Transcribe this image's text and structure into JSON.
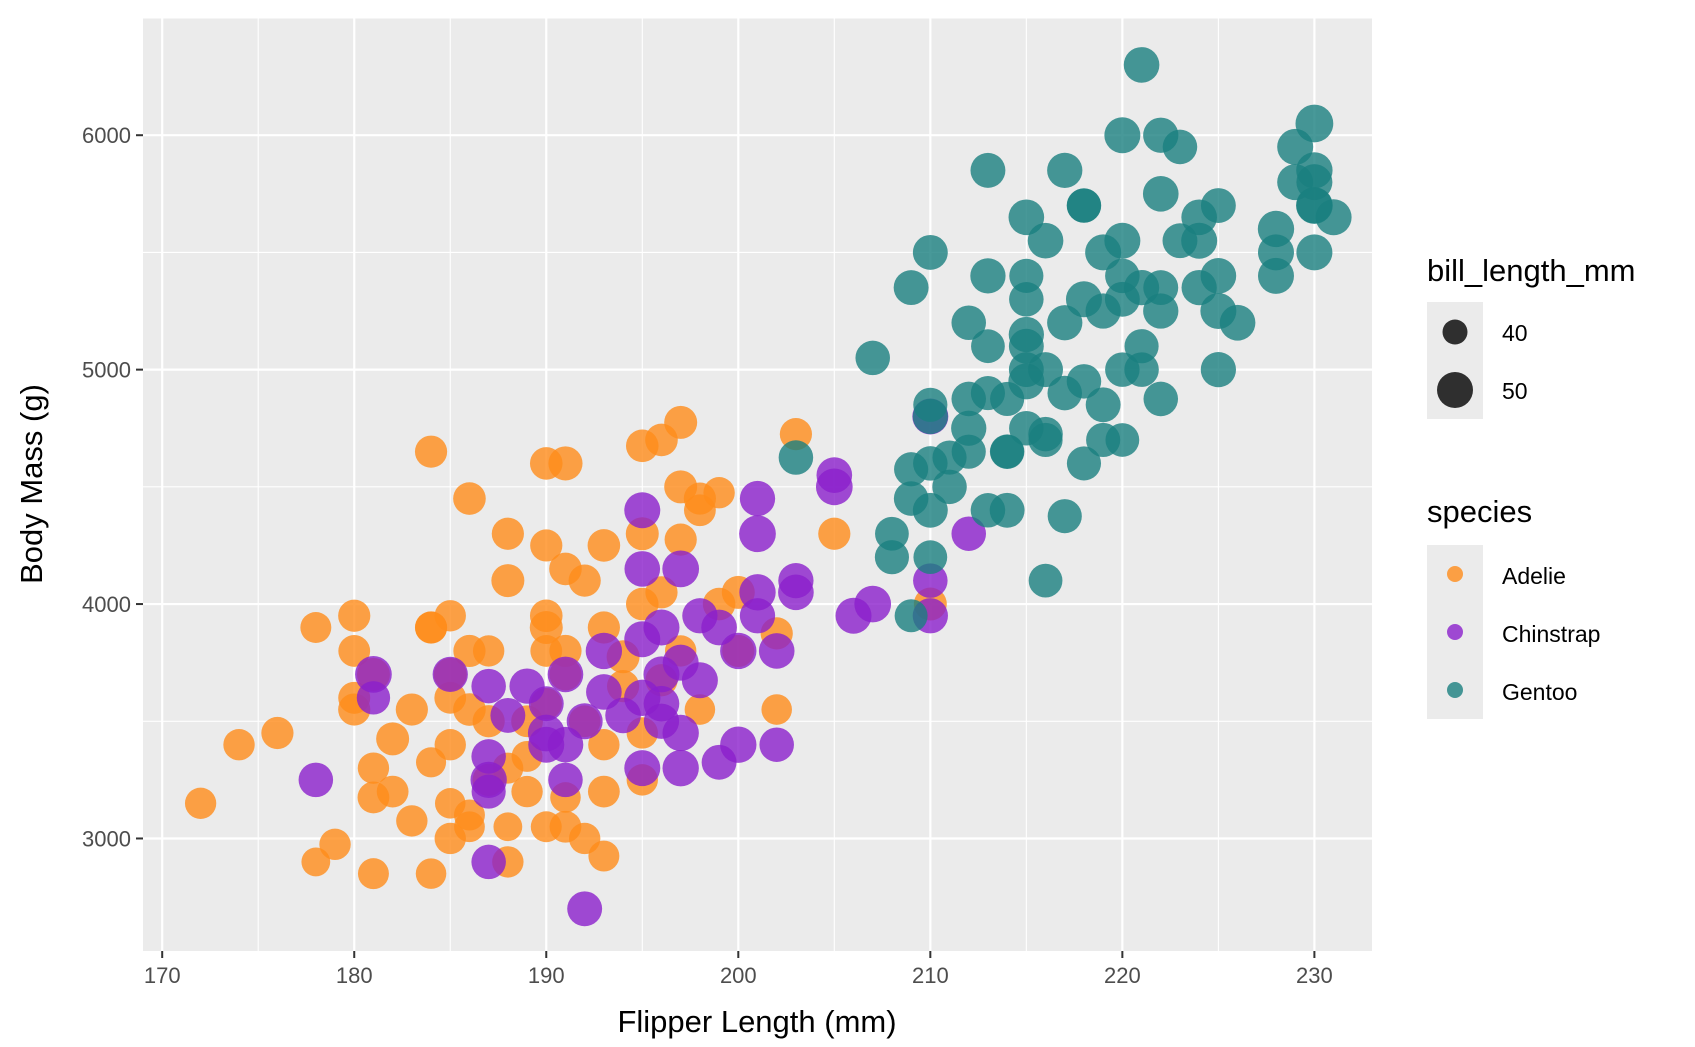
{
  "chart_data": {
    "type": "scatter",
    "title": "",
    "xlabel": "Flipper Length (mm)",
    "ylabel": "Body Mass (g)",
    "xlim": [
      169,
      233
    ],
    "ylim": [
      2520,
      6500
    ],
    "x_ticks": [
      170,
      180,
      190,
      200,
      210,
      220,
      230
    ],
    "y_ticks": [
      3000,
      4000,
      5000,
      6000
    ],
    "grid": true,
    "legend_position": "right",
    "size_legend": {
      "title": "bill_length_mm",
      "entries": [
        {
          "label": "40",
          "value": 40
        },
        {
          "label": "50",
          "value": 50
        }
      ]
    },
    "color_legend": {
      "title": "species",
      "entries": [
        {
          "label": "Adelie",
          "color": "#FF8C1A"
        },
        {
          "label": "Chinstrap",
          "color": "#8B1FCC"
        },
        {
          "label": "Gentoo",
          "color": "#1A8080"
        }
      ]
    },
    "series": [
      {
        "name": "Adelie",
        "color": "#FF8C1A",
        "points": [
          [
            172,
            3150,
            37.8
          ],
          [
            174,
            3400,
            38
          ],
          [
            176,
            3450,
            40
          ],
          [
            178,
            2900,
            32
          ],
          [
            178,
            3900,
            37
          ],
          [
            179,
            2975,
            38
          ],
          [
            180,
            3950,
            40
          ],
          [
            180,
            3800,
            39
          ],
          [
            180,
            3600,
            39.5
          ],
          [
            180,
            3550,
            40
          ],
          [
            181,
            3300,
            38
          ],
          [
            181,
            3175,
            39
          ],
          [
            181,
            2850,
            37
          ],
          [
            181,
            3700,
            42
          ],
          [
            182,
            3425,
            42
          ],
          [
            182,
            3200,
            39
          ],
          [
            183,
            3075,
            38
          ],
          [
            183,
            3550,
            40
          ],
          [
            184,
            3900,
            40
          ],
          [
            184,
            3900,
            39.5
          ],
          [
            184,
            3325,
            35
          ],
          [
            184,
            2850,
            36
          ],
          [
            184,
            4650,
            40
          ],
          [
            185,
            3950,
            38
          ],
          [
            185,
            3700,
            42
          ],
          [
            185,
            3600,
            39
          ],
          [
            185,
            3400,
            38
          ],
          [
            185,
            3150,
            36
          ],
          [
            185,
            3000,
            38
          ],
          [
            186,
            3550,
            41
          ],
          [
            186,
            3100,
            37
          ],
          [
            186,
            3800,
            40
          ],
          [
            186,
            4450,
            41
          ],
          [
            186,
            3050,
            36.5
          ],
          [
            187,
            3800,
            38
          ],
          [
            187,
            3250,
            40
          ],
          [
            187,
            3500,
            40
          ],
          [
            188,
            3300,
            37
          ],
          [
            188,
            4300,
            40
          ],
          [
            188,
            4100,
            42
          ],
          [
            188,
            2900,
            38
          ],
          [
            188,
            3050,
            32
          ],
          [
            189,
            3350,
            37
          ],
          [
            189,
            3200,
            38
          ],
          [
            189,
            3500,
            39
          ],
          [
            190,
            4250,
            40
          ],
          [
            190,
            3900,
            42
          ],
          [
            190,
            3950,
            41
          ],
          [
            190,
            4600,
            41
          ],
          [
            190,
            3050,
            37
          ],
          [
            190,
            3800,
            39
          ],
          [
            190,
            3575,
            38
          ],
          [
            191,
            3800,
            40
          ],
          [
            191,
            4150,
            41
          ],
          [
            191,
            3700,
            40
          ],
          [
            191,
            3050,
            39
          ],
          [
            191,
            3175,
            36
          ],
          [
            191,
            4600,
            45
          ],
          [
            192,
            4100,
            40
          ],
          [
            192,
            3500,
            39
          ],
          [
            192,
            3000,
            38
          ],
          [
            193,
            3400,
            38
          ],
          [
            193,
            3200,
            39
          ],
          [
            193,
            3900,
            40
          ],
          [
            193,
            2925,
            37
          ],
          [
            193,
            4250,
            41
          ],
          [
            194,
            3775,
            42
          ],
          [
            194,
            3650,
            40
          ],
          [
            195,
            4000,
            41
          ],
          [
            195,
            4675,
            41
          ],
          [
            195,
            3450,
            38
          ],
          [
            195,
            3250,
            38
          ],
          [
            195,
            4300,
            42
          ],
          [
            196,
            4050,
            40
          ],
          [
            196,
            4700,
            41
          ],
          [
            196,
            3675,
            40
          ],
          [
            197,
            4500,
            42
          ],
          [
            197,
            4775,
            42
          ],
          [
            197,
            4275,
            40
          ],
          [
            197,
            3800,
            38
          ],
          [
            198,
            4400,
            39
          ],
          [
            198,
            3550,
            36
          ],
          [
            198,
            4450,
            40
          ],
          [
            199,
            4000,
            41
          ],
          [
            199,
            4475,
            38
          ],
          [
            200,
            4050,
            42
          ],
          [
            200,
            3800,
            40
          ],
          [
            202,
            3550,
            36
          ],
          [
            202,
            3875,
            40
          ],
          [
            203,
            4725,
            40
          ],
          [
            205,
            4300,
            40
          ],
          [
            210,
            4000,
            42
          ]
        ]
      },
      {
        "name": "Chinstrap",
        "color": "#8B1FCC",
        "points": [
          [
            178,
            3250,
            46
          ],
          [
            181,
            3700,
            52
          ],
          [
            181,
            3600,
            43
          ],
          [
            185,
            3700,
            48
          ],
          [
            187,
            3650,
            46
          ],
          [
            187,
            3350,
            46
          ],
          [
            187,
            3250,
            51
          ],
          [
            187,
            3200,
            45
          ],
          [
            187,
            2900,
            46
          ],
          [
            188,
            3525,
            47
          ],
          [
            189,
            3650,
            48
          ],
          [
            190,
            3400,
            50
          ],
          [
            190,
            3575,
            47
          ],
          [
            190,
            3450,
            52
          ],
          [
            191,
            3700,
            49
          ],
          [
            191,
            3250,
            46
          ],
          [
            191,
            3400,
            49
          ],
          [
            192,
            2700,
            47
          ],
          [
            192,
            3500,
            50
          ],
          [
            193,
            3800,
            51
          ],
          [
            193,
            3625,
            49
          ],
          [
            194,
            3525,
            49
          ],
          [
            195,
            4400,
            50
          ],
          [
            195,
            4150,
            49
          ],
          [
            195,
            3850,
            50
          ],
          [
            195,
            3600,
            51
          ],
          [
            195,
            3300,
            50
          ],
          [
            196,
            3900,
            50
          ],
          [
            196,
            3500,
            48
          ],
          [
            196,
            3575,
            49
          ],
          [
            196,
            3700,
            50
          ],
          [
            197,
            4150,
            52
          ],
          [
            197,
            3450,
            51
          ],
          [
            197,
            3300,
            51
          ],
          [
            197,
            3750,
            50
          ],
          [
            198,
            3950,
            48
          ],
          [
            198,
            3675,
            50
          ],
          [
            199,
            3900,
            49
          ],
          [
            199,
            3325,
            47
          ],
          [
            200,
            3800,
            51
          ],
          [
            200,
            3400,
            51
          ],
          [
            201,
            4450,
            48
          ],
          [
            201,
            4300,
            52
          ],
          [
            201,
            3950,
            48
          ],
          [
            201,
            4050,
            51
          ],
          [
            202,
            3800,
            49
          ],
          [
            202,
            3400,
            46
          ],
          [
            203,
            4050,
            49
          ],
          [
            203,
            4100,
            48
          ],
          [
            205,
            4550,
            49
          ],
          [
            205,
            4500,
            52
          ],
          [
            206,
            3950,
            50
          ],
          [
            207,
            4000,
            52
          ],
          [
            210,
            4800,
            50
          ],
          [
            210,
            4100,
            46
          ],
          [
            210,
            3950,
            48
          ],
          [
            212,
            4300,
            46
          ]
        ]
      },
      {
        "name": "Gentoo",
        "color": "#1A8080",
        "points": [
          [
            203,
            4625,
            46
          ],
          [
            207,
            5050,
            46
          ],
          [
            208,
            4200,
            45
          ],
          [
            208,
            4300,
            44
          ],
          [
            209,
            5350,
            47
          ],
          [
            209,
            3950,
            42
          ],
          [
            209,
            4450,
            46
          ],
          [
            209,
            4575,
            45
          ],
          [
            210,
            4800,
            48
          ],
          [
            210,
            4400,
            47
          ],
          [
            210,
            4200,
            44
          ],
          [
            210,
            4600,
            46
          ],
          [
            210,
            4850,
            45
          ],
          [
            210,
            5500,
            47
          ],
          [
            211,
            4500,
            46
          ],
          [
            211,
            4625,
            45
          ],
          [
            212,
            4875,
            46
          ],
          [
            212,
            4750,
            48
          ],
          [
            212,
            4650,
            45
          ],
          [
            212,
            5200,
            46
          ],
          [
            213,
            4400,
            46
          ],
          [
            213,
            5850,
            47
          ],
          [
            213,
            4900,
            45
          ],
          [
            213,
            5100,
            44
          ],
          [
            213,
            5400,
            48
          ],
          [
            214,
            4650,
            46
          ],
          [
            214,
            4875,
            45
          ],
          [
            214,
            4400,
            47
          ],
          [
            214,
            4650,
            44
          ],
          [
            215,
            5000,
            47
          ],
          [
            215,
            5150,
            48
          ],
          [
            215,
            5300,
            46
          ],
          [
            215,
            5650,
            49
          ],
          [
            215,
            4950,
            50
          ],
          [
            215,
            5400,
            45
          ],
          [
            215,
            4750,
            46
          ],
          [
            215,
            5100,
            47
          ],
          [
            216,
            4100,
            44
          ],
          [
            216,
            4725,
            46
          ],
          [
            216,
            4700,
            45
          ],
          [
            216,
            5550,
            49
          ],
          [
            216,
            5000,
            47
          ],
          [
            217,
            4900,
            46
          ],
          [
            217,
            5200,
            48
          ],
          [
            217,
            5850,
            48
          ],
          [
            217,
            4375,
            45
          ],
          [
            218,
            5700,
            46
          ],
          [
            218,
            5300,
            50
          ],
          [
            218,
            4950,
            46
          ],
          [
            218,
            4600,
            45
          ],
          [
            218,
            5700,
            45
          ],
          [
            219,
            5250,
            48
          ],
          [
            219,
            4850,
            47
          ],
          [
            219,
            5500,
            50
          ],
          [
            219,
            4700,
            45
          ],
          [
            220,
            6000,
            50
          ],
          [
            220,
            5000,
            46
          ],
          [
            220,
            5550,
            50
          ],
          [
            220,
            4700,
            44
          ],
          [
            220,
            5300,
            47
          ],
          [
            220,
            5400,
            46
          ],
          [
            221,
            5100,
            45
          ],
          [
            221,
            5000,
            46
          ],
          [
            221,
            6300,
            49
          ],
          [
            221,
            5350,
            48
          ],
          [
            222,
            6000,
            48
          ],
          [
            222,
            5750,
            49
          ],
          [
            222,
            5350,
            47
          ],
          [
            222,
            4875,
            46
          ],
          [
            222,
            5250,
            48
          ],
          [
            223,
            5950,
            46
          ],
          [
            223,
            5550,
            47
          ],
          [
            224,
            5650,
            49
          ],
          [
            224,
            5350,
            48
          ],
          [
            224,
            5550,
            50
          ],
          [
            225,
            5700,
            47
          ],
          [
            225,
            5400,
            49
          ],
          [
            225,
            5250,
            50
          ],
          [
            225,
            5000,
            48
          ],
          [
            226,
            5200,
            49
          ],
          [
            228,
            5600,
            51
          ],
          [
            228,
            5400,
            50
          ],
          [
            228,
            5500,
            50
          ],
          [
            229,
            5950,
            50
          ],
          [
            229,
            5800,
            50
          ],
          [
            230,
            6050,
            55
          ],
          [
            230,
            5800,
            50
          ],
          [
            230,
            5700,
            52
          ],
          [
            230,
            5500,
            50
          ],
          [
            230,
            5850,
            51
          ],
          [
            230,
            5700,
            50
          ],
          [
            231,
            5650,
            50
          ]
        ]
      }
    ]
  }
}
